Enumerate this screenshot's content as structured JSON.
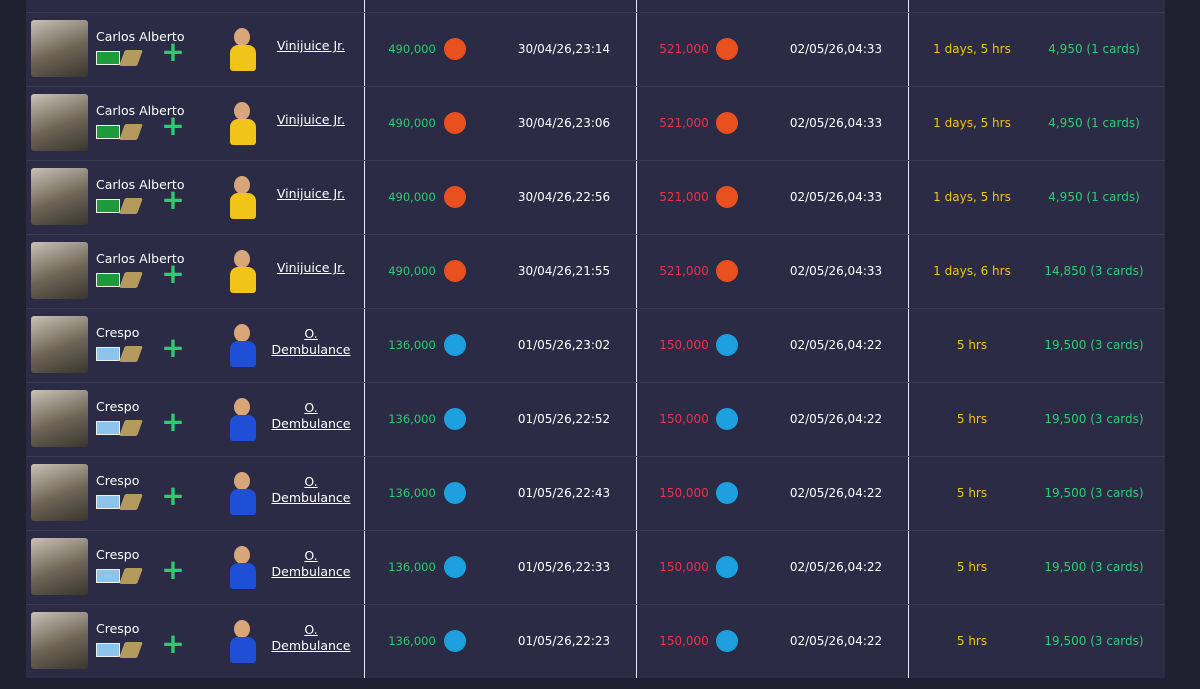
{
  "table": {
    "rows": [
      {
        "player": "Carlos Alberto",
        "user": "Vinijuice Jr.",
        "buy_price": "490,000",
        "buy_time": "30/04/26,23:14",
        "sell_price": "521,000",
        "sell_time": "02/05/26,04:33",
        "duration": "1 days, 5 hrs",
        "profit": "4,950 (1 cards)",
        "icon_color": "#e8501e",
        "flag_color": "#1f9a3a"
      },
      {
        "player": "Carlos Alberto",
        "user": "Vinijuice Jr.",
        "buy_price": "490,000",
        "buy_time": "30/04/26,23:06",
        "sell_price": "521,000",
        "sell_time": "02/05/26,04:33",
        "duration": "1 days, 5 hrs",
        "profit": "4,950 (1 cards)",
        "icon_color": "#e8501e",
        "flag_color": "#1f9a3a"
      },
      {
        "player": "Carlos Alberto",
        "user": "Vinijuice Jr.",
        "buy_price": "490,000",
        "buy_time": "30/04/26,22:56",
        "sell_price": "521,000",
        "sell_time": "02/05/26,04:33",
        "duration": "1 days, 5 hrs",
        "profit": "4,950 (1 cards)",
        "icon_color": "#e8501e",
        "flag_color": "#1f9a3a"
      },
      {
        "player": "Carlos Alberto",
        "user": "Vinijuice Jr.",
        "buy_price": "490,000",
        "buy_time": "30/04/26,21:55",
        "sell_price": "521,000",
        "sell_time": "02/05/26,04:33",
        "duration": "1 days, 6 hrs",
        "profit": "14,850 (3 cards)",
        "icon_color": "#e8501e",
        "flag_color": "#1f9a3a"
      },
      {
        "player": "Crespo",
        "user": "O. Dembulance",
        "buy_price": "136,000",
        "buy_time": "01/05/26,23:02",
        "sell_price": "150,000",
        "sell_time": "02/05/26,04:22",
        "duration": "5 hrs",
        "profit": "19,500 (3 cards)",
        "icon_color": "#1e9fe0",
        "flag_color": "#8cc4ec"
      },
      {
        "player": "Crespo",
        "user": "O. Dembulance",
        "buy_price": "136,000",
        "buy_time": "01/05/26,22:52",
        "sell_price": "150,000",
        "sell_time": "02/05/26,04:22",
        "duration": "5 hrs",
        "profit": "19,500 (3 cards)",
        "icon_color": "#1e9fe0",
        "flag_color": "#8cc4ec"
      },
      {
        "player": "Crespo",
        "user": "O. Dembulance",
        "buy_price": "136,000",
        "buy_time": "01/05/26,22:43",
        "sell_price": "150,000",
        "sell_time": "02/05/26,04:22",
        "duration": "5 hrs",
        "profit": "19,500 (3 cards)",
        "icon_color": "#1e9fe0",
        "flag_color": "#8cc4ec"
      },
      {
        "player": "Crespo",
        "user": "O. Dembulance",
        "buy_price": "136,000",
        "buy_time": "01/05/26,22:33",
        "sell_price": "150,000",
        "sell_time": "02/05/26,04:22",
        "duration": "5 hrs",
        "profit": "19,500 (3 cards)",
        "icon_color": "#1e9fe0",
        "flag_color": "#8cc4ec"
      },
      {
        "player": "Crespo",
        "user": "O. Dembulance",
        "buy_price": "136,000",
        "buy_time": "01/05/26,22:23",
        "sell_price": "150,000",
        "sell_time": "02/05/26,04:22",
        "duration": "5 hrs",
        "profit": "19,500 (3 cards)",
        "icon_color": "#1e9fe0",
        "flag_color": "#8cc4ec"
      }
    ]
  }
}
